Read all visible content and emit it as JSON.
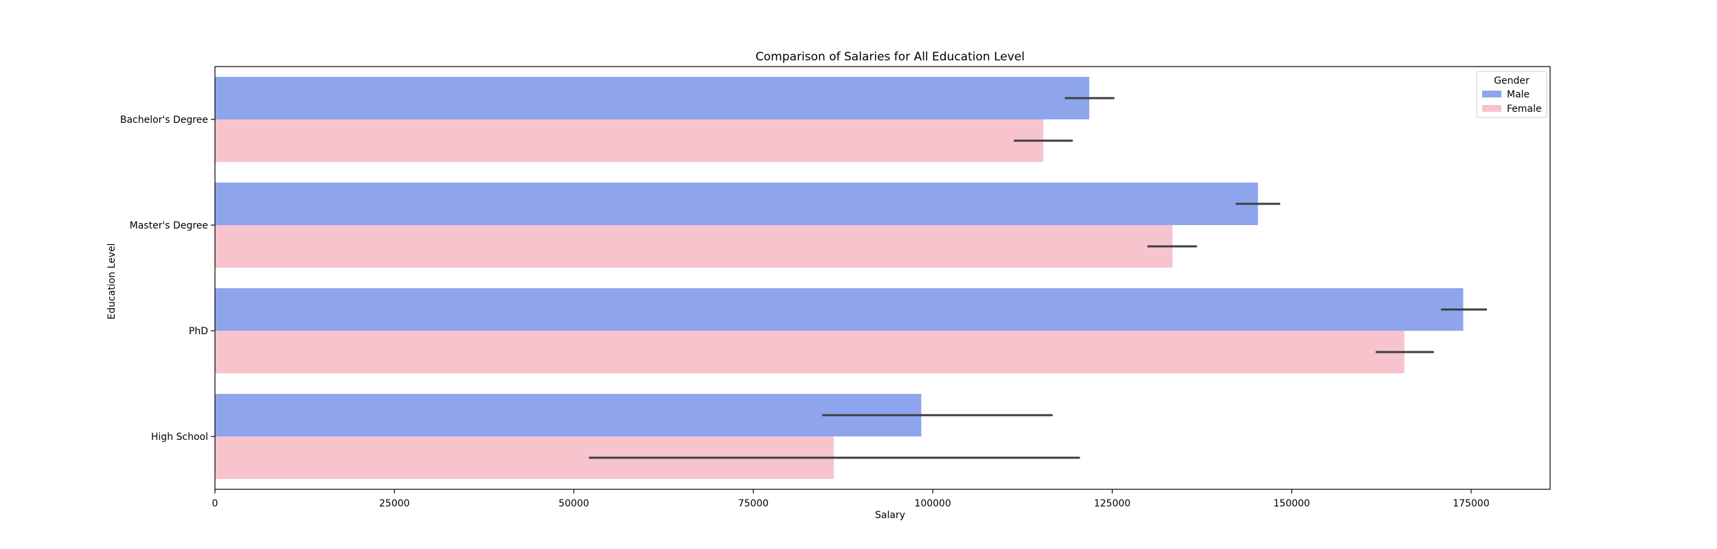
{
  "chart_data": {
    "type": "bar",
    "orientation": "horizontal",
    "title": "Comparison of Salaries for All Education Level",
    "xlabel": "Salary",
    "ylabel": "Education Level",
    "categories": [
      "Bachelor's Degree",
      "Master's Degree",
      "PhD",
      "High School"
    ],
    "xlim": [
      0,
      186000
    ],
    "xticks": [
      0,
      25000,
      50000,
      75000,
      100000,
      125000,
      150000,
      175000
    ],
    "grid": false,
    "legend": {
      "title": "Gender",
      "placement": "top-right"
    },
    "series": [
      {
        "name": "Male",
        "color": "#8ea5ee",
        "values": [
          121800,
          145300,
          173900,
          98400
        ],
        "error_low": [
          118400,
          142200,
          170800,
          84600
        ],
        "error_high": [
          125300,
          148400,
          177200,
          116700
        ]
      },
      {
        "name": "Female",
        "color": "#f7c4ce",
        "values": [
          115400,
          133400,
          165700,
          86200
        ],
        "error_low": [
          111300,
          129900,
          161700,
          52100
        ],
        "error_high": [
          119500,
          136800,
          169800,
          120500
        ]
      }
    ]
  }
}
